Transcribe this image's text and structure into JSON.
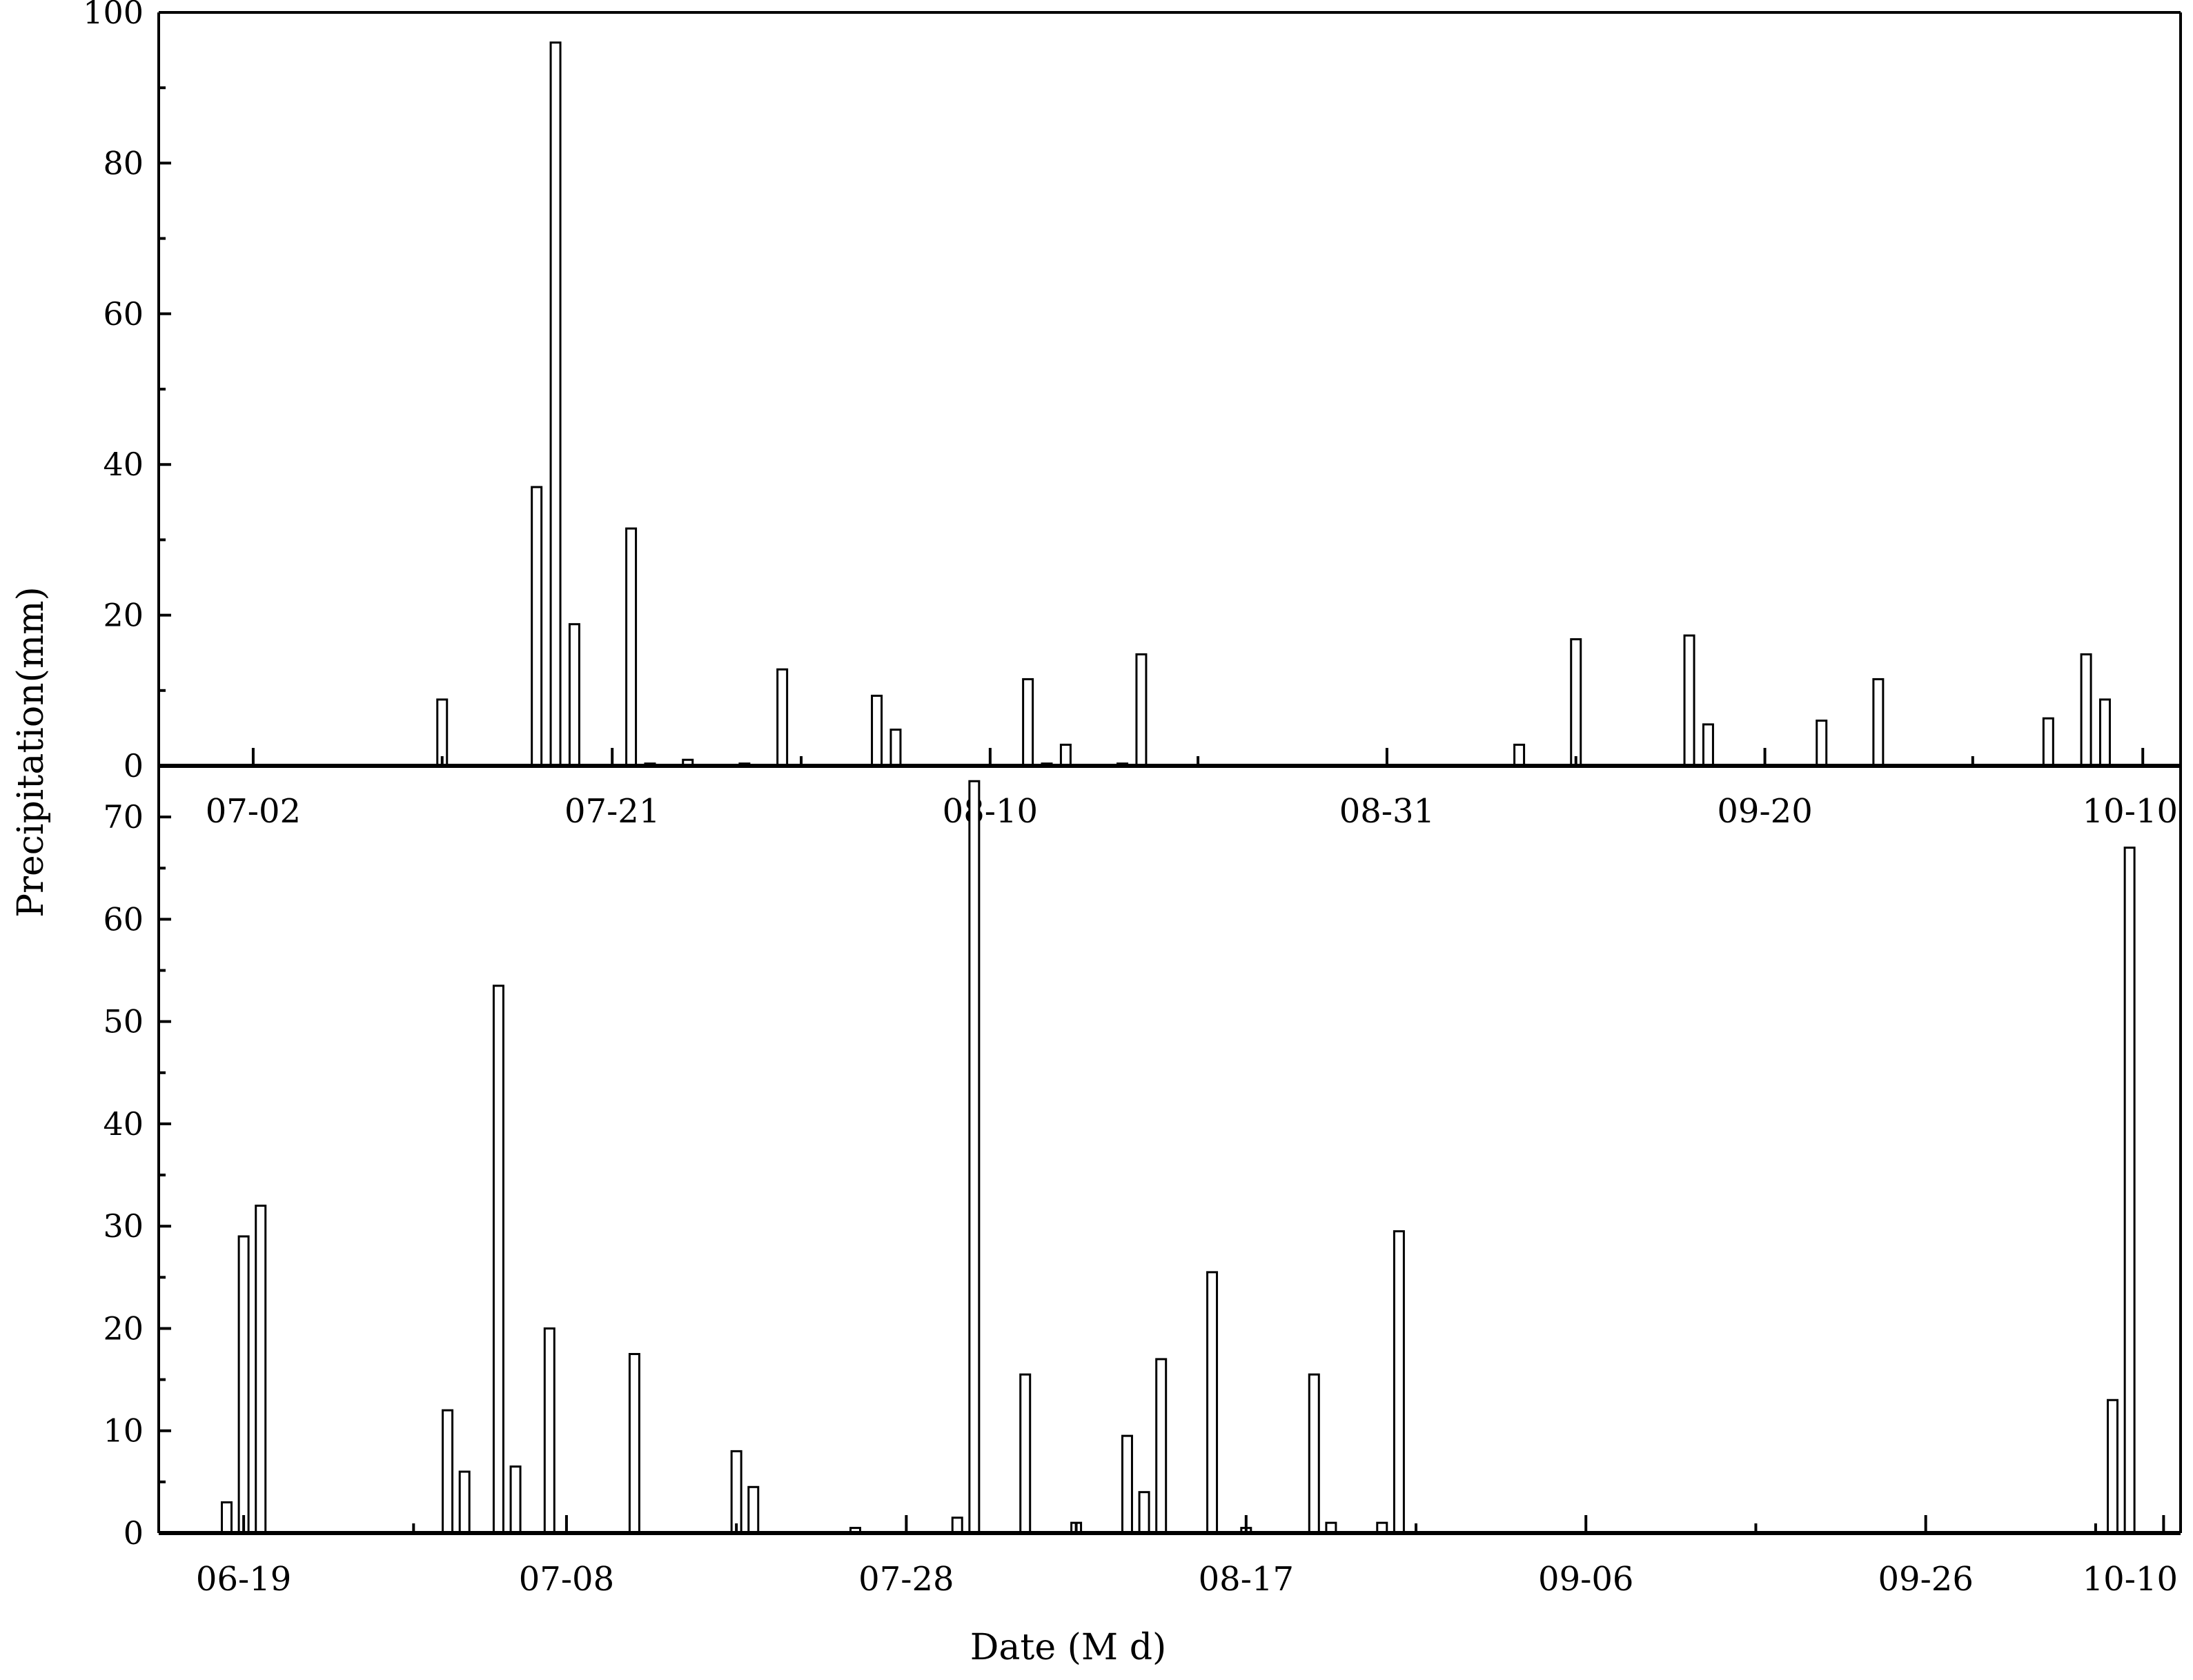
{
  "chart_data": [
    {
      "type": "bar",
      "panel": "top",
      "ylabel": "Precipitation(mm)",
      "xlabel": "",
      "ylim": [
        0,
        100
      ],
      "yticks": [
        "0",
        "20",
        "40",
        "60",
        "80",
        "100"
      ],
      "xtick_labels": [
        "07-02",
        "07-21",
        "08-10",
        "08-31",
        "09-20",
        "10-10"
      ],
      "grid": false,
      "series": [
        {
          "values": [
            {
              "x": "07-12",
              "y": 8.8
            },
            {
              "x": "07-17",
              "y": 37.0
            },
            {
              "x": "07-18",
              "y": 96.0
            },
            {
              "x": "07-19",
              "y": 18.8
            },
            {
              "x": "07-22",
              "y": 31.5
            },
            {
              "x": "07-23",
              "y": 0.3
            },
            {
              "x": "07-25",
              "y": 0.8
            },
            {
              "x": "07-28",
              "y": 0.3
            },
            {
              "x": "07-30",
              "y": 12.8
            },
            {
              "x": "08-04",
              "y": 9.3
            },
            {
              "x": "08-05",
              "y": 4.8
            },
            {
              "x": "08-12",
              "y": 11.5
            },
            {
              "x": "08-13",
              "y": 0.3
            },
            {
              "x": "08-14",
              "y": 2.8
            },
            {
              "x": "08-17",
              "y": 0.3
            },
            {
              "x": "08-18",
              "y": 14.8
            },
            {
              "x": "09-07",
              "y": 2.8
            },
            {
              "x": "09-10",
              "y": 16.8
            },
            {
              "x": "09-16",
              "y": 17.3
            },
            {
              "x": "09-17",
              "y": 5.5
            },
            {
              "x": "09-23",
              "y": 6.0
            },
            {
              "x": "09-26",
              "y": 11.5
            },
            {
              "x": "10-05",
              "y": 6.3
            },
            {
              "x": "10-07",
              "y": 14.8
            },
            {
              "x": "10-08",
              "y": 8.8
            }
          ]
        }
      ]
    },
    {
      "type": "bar",
      "panel": "bottom",
      "ylabel": "Precipitation(mm)",
      "xlabel": "Date (M d)",
      "ylim": [
        0,
        75
      ],
      "yticks": [
        "0",
        "10",
        "20",
        "30",
        "40",
        "50",
        "60",
        "70"
      ],
      "xtick_labels": [
        "06-19",
        "07-08",
        "07-28",
        "08-17",
        "09-06",
        "09-26",
        "10-10"
      ],
      "grid": false,
      "series": [
        {
          "values": [
            {
              "x": "06-18",
              "y": 3.0
            },
            {
              "x": "06-19",
              "y": 29.0
            },
            {
              "x": "06-20",
              "y": 32.0
            },
            {
              "x": "07-01",
              "y": 12.0
            },
            {
              "x": "07-02",
              "y": 6.0
            },
            {
              "x": "07-04",
              "y": 53.5
            },
            {
              "x": "07-05",
              "y": 6.5
            },
            {
              "x": "07-07",
              "y": 20.0
            },
            {
              "x": "07-12",
              "y": 17.5
            },
            {
              "x": "07-18",
              "y": 8.0
            },
            {
              "x": "07-19",
              "y": 4.5
            },
            {
              "x": "07-25",
              "y": 0.5
            },
            {
              "x": "07-31",
              "y": 1.5
            },
            {
              "x": "08-01",
              "y": 73.5
            },
            {
              "x": "08-04",
              "y": 15.5
            },
            {
              "x": "08-07",
              "y": 1.0
            },
            {
              "x": "08-10",
              "y": 9.5
            },
            {
              "x": "08-11",
              "y": 4.0
            },
            {
              "x": "08-12",
              "y": 17.0
            },
            {
              "x": "08-15",
              "y": 25.5
            },
            {
              "x": "08-17",
              "y": 0.5
            },
            {
              "x": "08-21",
              "y": 15.5
            },
            {
              "x": "08-22",
              "y": 1.0
            },
            {
              "x": "08-25",
              "y": 1.0
            },
            {
              "x": "08-26",
              "y": 29.5
            },
            {
              "x": "10-07",
              "y": 13.0
            },
            {
              "x": "10-08",
              "y": 67.0
            }
          ]
        }
      ]
    }
  ]
}
